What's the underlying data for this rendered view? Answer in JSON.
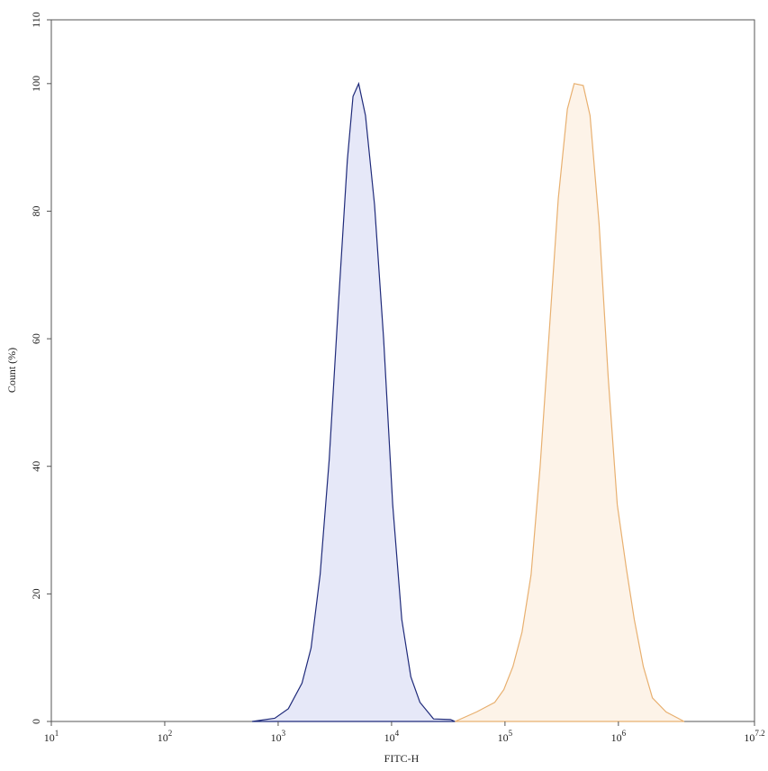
{
  "chart_data": {
    "type": "area",
    "x_label": "FITC-H",
    "y_label": "Count (%)",
    "xscale": "log",
    "xlim": [
      10,
      15848931.92
    ],
    "xticks": [
      {
        "value": 10,
        "label": {
          "base": "10",
          "power": "1"
        }
      },
      {
        "value": 100,
        "label": {
          "base": "10",
          "power": "2"
        }
      },
      {
        "value": 1000,
        "label": {
          "base": "10",
          "power": "3"
        }
      },
      {
        "value": 10000,
        "label": {
          "base": "10",
          "power": "4"
        }
      },
      {
        "value": 100000,
        "label": {
          "base": "10",
          "power": "5"
        }
      },
      {
        "value": 1000000,
        "label": {
          "base": "10",
          "power": "6"
        }
      },
      {
        "value": 15848931.92,
        "label": {
          "base": "10",
          "power": "7.2"
        }
      }
    ],
    "ylim": [
      0,
      110
    ],
    "yticks": [
      0,
      20,
      40,
      60,
      80,
      100,
      110
    ],
    "series": [
      {
        "color": "#1f2a7a",
        "fill": "#e6e8f8",
        "x": [
          589,
          933,
          1230,
          1622,
          1950,
          2344,
          2818,
          3388,
          4074,
          4571,
          5129,
          5888,
          7079,
          8511,
          10233,
          12303,
          14791,
          17783,
          23442,
          33113,
          36308
        ],
        "values": [
          0,
          0.5,
          2,
          6,
          11.5,
          23,
          41,
          65,
          88,
          98,
          100,
          95,
          81,
          60,
          34,
          16,
          7,
          3,
          0.4,
          0.3,
          0
        ]
      },
      {
        "color": "#e8b070",
        "fill": "#fdf3e8",
        "x": [
          36308,
          56234,
          81283,
          97724,
          117490,
          141254,
          169824,
          204174,
          245471,
          295121,
          354813,
          407380,
          489779,
          562341,
          676083,
          812831,
          977237,
          1174898,
          1380384,
          1659587,
          1995262,
          2630268,
          3801894
        ],
        "values": [
          0,
          1.5,
          3,
          5,
          8.6,
          14,
          23,
          40,
          61,
          82,
          96,
          100,
          99.7,
          95,
          78,
          54,
          34,
          24,
          16,
          8.6,
          3.7,
          1.5,
          0
        ]
      }
    ]
  }
}
